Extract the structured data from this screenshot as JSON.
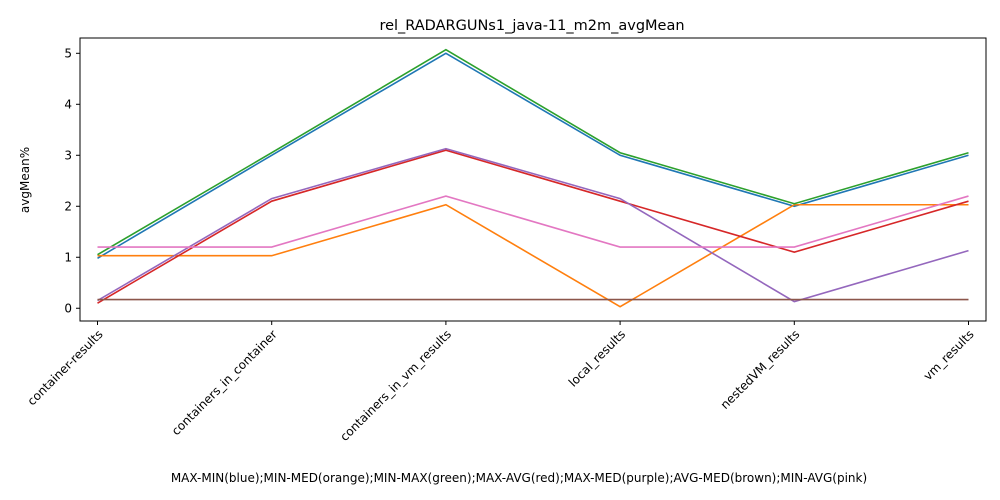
{
  "chart_data": {
    "type": "line",
    "title": "rel_RADARGUNs1_java-11_m2m_avgMean",
    "xlabel": "MAX-MIN(blue);MIN-MED(orange);MIN-MAX(green);MAX-AVG(red);MAX-MED(purple);AVG-MED(brown);MIN-AVG(pink)",
    "ylabel": "avgMean%",
    "categories": [
      "container-results",
      "containers_in_container",
      "containers_in_vm_results",
      "local_results",
      "nestedVM_results",
      "vm_results"
    ],
    "yticks": [
      "0",
      "1",
      "2",
      "3",
      "4",
      "5"
    ],
    "ylim": [
      -0.25,
      5.3
    ],
    "grid": false,
    "series": [
      {
        "color": "#1f77b4",
        "values": [
          0.98,
          3.0,
          5.0,
          3.0,
          2.0,
          3.0
        ]
      },
      {
        "color": "#ff7f0e",
        "values": [
          1.03,
          1.03,
          2.03,
          0.03,
          2.03,
          2.03
        ]
      },
      {
        "color": "#2ca02c",
        "values": [
          1.05,
          3.05,
          5.07,
          3.05,
          2.05,
          3.05
        ]
      },
      {
        "color": "#d62728",
        "values": [
          0.1,
          2.1,
          3.1,
          2.1,
          1.1,
          2.1
        ]
      },
      {
        "color": "#9467bd",
        "values": [
          0.15,
          2.15,
          3.13,
          2.15,
          0.13,
          1.13
        ]
      },
      {
        "color": "#8c564b",
        "values": [
          0.17,
          0.17,
          0.17,
          0.17,
          0.17,
          0.17
        ]
      },
      {
        "color": "#e377c2",
        "values": [
          1.2,
          1.2,
          2.2,
          1.2,
          1.2,
          2.2
        ]
      }
    ]
  }
}
